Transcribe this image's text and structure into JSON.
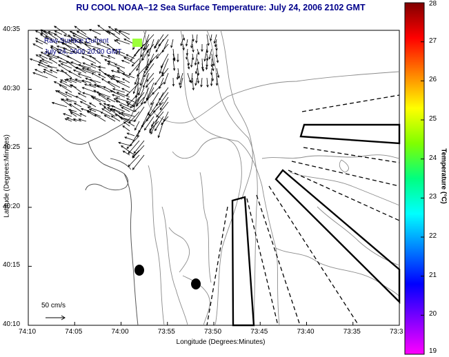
{
  "title": "RU COOL  NOAA–12  Sea Surface Temperature:  July 24, 2006 2102 GMT",
  "axes": {
    "xlabel": "Longitude (Degrees:Minutes)",
    "ylabel": "Latitude (Degrees:Minutes)",
    "x_ticks": [
      "74:10",
      "74:05",
      "74:00",
      "73:55",
      "73:50",
      "73:45",
      "73:40",
      "73:35",
      "73:3"
    ],
    "y_ticks": [
      "40:35",
      "40:30",
      "40:25",
      "40:20",
      "40:15",
      "40:10"
    ]
  },
  "legend": {
    "line1": "Raw Surface Current",
    "line2": "July 24, 2006 20:00 GMT"
  },
  "scale": {
    "label": "50 cm/s"
  },
  "colorbar": {
    "label": "Temperature (°C)",
    "ticks": [
      "28",
      "27",
      "26",
      "25",
      "24",
      "23",
      "22",
      "21",
      "20",
      "19"
    ],
    "min": 19,
    "max": 28,
    "colors": [
      "#ff00ff",
      "#8000ff",
      "#0000ff",
      "#0080ff",
      "#00ffff",
      "#00ff80",
      "#80ff00",
      "#ffff00",
      "#ff8000",
      "#ff0000",
      "#800000"
    ]
  }
}
